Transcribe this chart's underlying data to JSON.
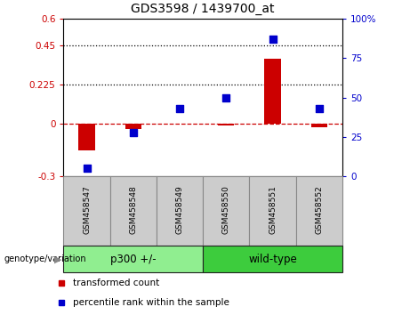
{
  "title": "GDS3598 / 1439700_at",
  "samples": [
    "GSM458547",
    "GSM458548",
    "GSM458549",
    "GSM458550",
    "GSM458551",
    "GSM458552"
  ],
  "transformed_count": [
    -0.15,
    -0.03,
    0.0,
    -0.01,
    0.37,
    -0.02
  ],
  "percentile_rank": [
    5,
    28,
    43,
    50,
    87,
    43
  ],
  "ylim_left": [
    -0.3,
    0.6
  ],
  "ylim_right": [
    0,
    100
  ],
  "yticks_left": [
    -0.3,
    0.0,
    0.225,
    0.45,
    0.6
  ],
  "yticks_right": [
    0,
    25,
    50,
    75,
    100
  ],
  "ytick_labels_left": [
    "-0.3",
    "0",
    "0.225",
    "0.45",
    "0.6"
  ],
  "ytick_labels_right": [
    "0",
    "25",
    "50",
    "75",
    "100%"
  ],
  "hlines": [
    0.225,
    0.45
  ],
  "dashed_hline": 0.0,
  "bar_color": "#cc0000",
  "scatter_color": "#0000cc",
  "dashed_color": "#cc0000",
  "groups": [
    {
      "label": "p300 +/-",
      "samples": [
        0,
        1,
        2
      ],
      "color": "#90ee90"
    },
    {
      "label": "wild-type",
      "samples": [
        3,
        4,
        5
      ],
      "color": "#3dcc3d"
    }
  ],
  "group_label": "genotype/variation",
  "legend_entries": [
    {
      "label": "transformed count",
      "color": "#cc0000"
    },
    {
      "label": "percentile rank within the sample",
      "color": "#0000cc"
    }
  ],
  "bg_color": "#ffffff",
  "plot_bg_color": "#ffffff",
  "tick_label_color_left": "#cc0000",
  "tick_label_color_right": "#0000cc",
  "bar_width": 0.35,
  "scatter_size": 40,
  "sample_box_color": "#cccccc",
  "sample_box_edge": "#888888"
}
